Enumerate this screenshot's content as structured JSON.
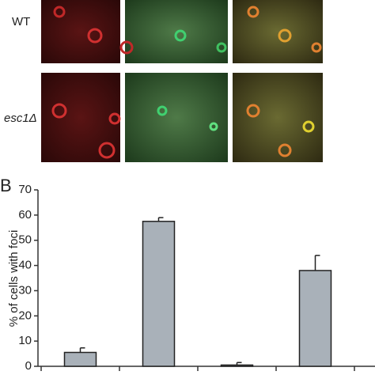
{
  "panel_b_label": "B",
  "row_labels": [
    "WT",
    "esc1Δ"
  ],
  "chart_data": {
    "type": "bar",
    "ylabel": "% of cells with foci",
    "categories": [
      null,
      null,
      null,
      null
    ],
    "values": [
      5.5,
      57.5,
      0.5,
      38
    ],
    "errors": [
      1.8,
      1.5,
      1,
      6
    ],
    "color": "#a9b1b9",
    "ylim": [
      0,
      70
    ],
    "yticks": [
      0,
      10,
      20,
      30,
      40,
      50,
      60,
      70
    ]
  }
}
